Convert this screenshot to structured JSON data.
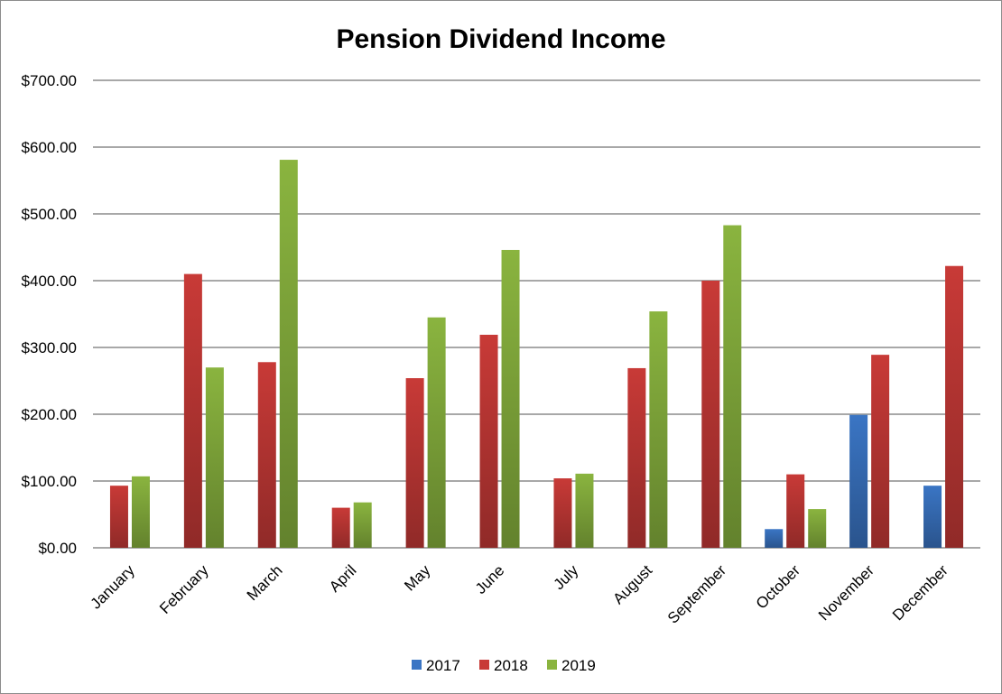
{
  "chart_data": {
    "type": "bar",
    "title": "Pension Dividend Income",
    "xlabel": "",
    "ylabel": "",
    "categories": [
      "January",
      "February",
      "March",
      "April",
      "May",
      "June",
      "July",
      "August",
      "September",
      "October",
      "November",
      "December"
    ],
    "series": [
      {
        "name": "2017",
        "color": "#3a75c4",
        "values": [
          null,
          null,
          null,
          null,
          null,
          null,
          null,
          null,
          null,
          28,
          199,
          93
        ]
      },
      {
        "name": "2018",
        "color": "#c83a37",
        "values": [
          93,
          410,
          278,
          60,
          254,
          319,
          104,
          269,
          400,
          110,
          289,
          422
        ]
      },
      {
        "name": "2019",
        "color": "#8ab43f",
        "values": [
          107,
          270,
          581,
          68,
          345,
          446,
          111,
          354,
          483,
          58,
          null,
          null
        ]
      }
    ],
    "ylim": [
      0,
      700
    ],
    "yticks": [
      0,
      100,
      200,
      300,
      400,
      500,
      600,
      700
    ],
    "ytick_labels": [
      "$0.00",
      "$100.00",
      "$200.00",
      "$300.00",
      "$400.00",
      "$500.00",
      "$600.00",
      "$700.00"
    ],
    "grid": true,
    "legend_position": "bottom"
  }
}
